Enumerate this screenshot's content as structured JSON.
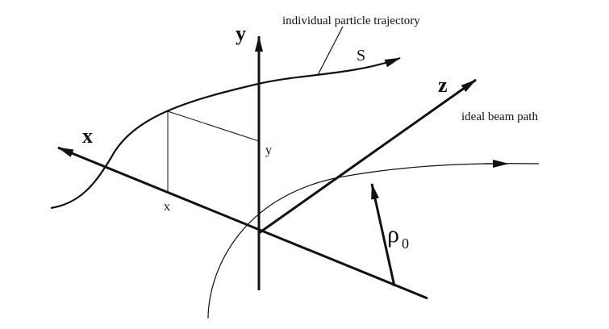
{
  "diagram": {
    "labels": {
      "y_axis": "y",
      "x_axis": "x",
      "z_axis": "z",
      "trajectory": "individual particle trajectory",
      "s": "S",
      "x_coord": "x",
      "y_coord": "y",
      "ideal_path": "ideal beam path",
      "rho": "ρ",
      "rho_sub": "0"
    },
    "colors": {
      "ink": "#111111",
      "background": "#ffffff"
    }
  }
}
